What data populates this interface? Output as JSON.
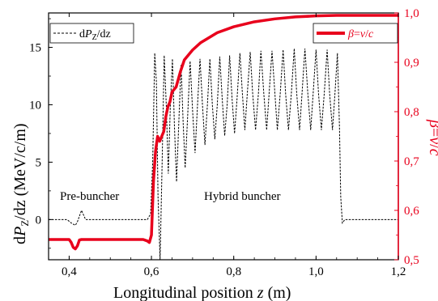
{
  "chart_data": {
    "type": "line",
    "xlabel": "Longitudinal position z (m)",
    "ylabel_left": "dPZ/dz (MeV/c/m)",
    "ylabel_right": "β=v/c",
    "xlim": [
      0.35,
      1.2
    ],
    "ylim_left": [
      -3.5,
      18.0
    ],
    "ylim_right": [
      0.5,
      1.0
    ],
    "x_ticks": [
      "0,4",
      "0,6",
      "0,8",
      "1,0",
      "1,2"
    ],
    "x_tick_values": [
      0.4,
      0.6,
      0.8,
      1.0,
      1.2
    ],
    "y_left_ticks": [
      "0",
      "5",
      "10",
      "15"
    ],
    "y_left_tick_values": [
      0,
      5,
      10,
      15
    ],
    "y_right_ticks": [
      "0,5",
      "0,6",
      "0,7",
      "0,8",
      "0,9",
      "1,0"
    ],
    "y_right_tick_values": [
      0.5,
      0.6,
      0.7,
      0.8,
      0.9,
      1.0
    ],
    "annotations": [
      "Pre-buncher",
      "Hybrid buncher"
    ],
    "legend_left": "dPZ/dz",
    "legend_right": "β=v/c",
    "series": [
      {
        "name": "dPZ/dz",
        "axis": "left",
        "color": "#000000",
        "style": "dashed",
        "points": [
          [
            0.35,
            0
          ],
          [
            0.395,
            0
          ],
          [
            0.405,
            -0.3
          ],
          [
            0.415,
            -0.5
          ],
          [
            0.42,
            -0.2
          ],
          [
            0.425,
            0.3
          ],
          [
            0.43,
            0.8
          ],
          [
            0.435,
            0.4
          ],
          [
            0.44,
            0
          ],
          [
            0.59,
            0
          ],
          [
            0.598,
            0.5
          ],
          [
            0.603,
            5
          ],
          [
            0.608,
            14.5
          ],
          [
            0.612,
            12
          ],
          [
            0.616,
            2
          ],
          [
            0.621,
            -3.5
          ],
          [
            0.626,
            5
          ],
          [
            0.631,
            14.3
          ],
          [
            0.636,
            10
          ],
          [
            0.641,
            4
          ],
          [
            0.646,
            10
          ],
          [
            0.651,
            14
          ],
          [
            0.656,
            8
          ],
          [
            0.661,
            3.3
          ],
          [
            0.666,
            8
          ],
          [
            0.672,
            13.5
          ],
          [
            0.677,
            8.5
          ],
          [
            0.682,
            4.5
          ],
          [
            0.688,
            9
          ],
          [
            0.694,
            13.8
          ],
          [
            0.7,
            9.5
          ],
          [
            0.706,
            5.8
          ],
          [
            0.712,
            10
          ],
          [
            0.718,
            14
          ],
          [
            0.724,
            10
          ],
          [
            0.73,
            6.5
          ],
          [
            0.736,
            10
          ],
          [
            0.742,
            14.0
          ],
          [
            0.748,
            10
          ],
          [
            0.754,
            7
          ],
          [
            0.76,
            10
          ],
          [
            0.766,
            14.2
          ],
          [
            0.772,
            10.5
          ],
          [
            0.778,
            7.3
          ],
          [
            0.784,
            10
          ],
          [
            0.79,
            14.3
          ],
          [
            0.796,
            10.5
          ],
          [
            0.802,
            7.5
          ],
          [
            0.808,
            10.5
          ],
          [
            0.815,
            14.5
          ],
          [
            0.821,
            11
          ],
          [
            0.827,
            7.8
          ],
          [
            0.833,
            11
          ],
          [
            0.84,
            14.6
          ],
          [
            0.846,
            11
          ],
          [
            0.853,
            7.8
          ],
          [
            0.86,
            11
          ],
          [
            0.866,
            14.7
          ],
          [
            0.873,
            11
          ],
          [
            0.88,
            7.8
          ],
          [
            0.886,
            11
          ],
          [
            0.893,
            14.7
          ],
          [
            0.9,
            11
          ],
          [
            0.906,
            7.8
          ],
          [
            0.913,
            11
          ],
          [
            0.92,
            14.8
          ],
          [
            0.926,
            11
          ],
          [
            0.933,
            7.8
          ],
          [
            0.94,
            11
          ],
          [
            0.947,
            14.9
          ],
          [
            0.953,
            11
          ],
          [
            0.96,
            7.8
          ],
          [
            0.966,
            11
          ],
          [
            0.973,
            14.9
          ],
          [
            0.98,
            11
          ],
          [
            0.987,
            7.8
          ],
          [
            0.993,
            11
          ],
          [
            1.0,
            14.8
          ],
          [
            1.006,
            11
          ],
          [
            1.013,
            7.8
          ],
          [
            1.02,
            11
          ],
          [
            1.027,
            14.8
          ],
          [
            1.033,
            11
          ],
          [
            1.04,
            7.8
          ],
          [
            1.046,
            11
          ],
          [
            1.052,
            14.5
          ],
          [
            1.057,
            8
          ],
          [
            1.06,
            2
          ],
          [
            1.064,
            -0.3
          ],
          [
            1.07,
            0
          ],
          [
            1.2,
            0
          ]
        ]
      },
      {
        "name": "β=v/c",
        "axis": "right",
        "color": "#e8001c",
        "style": "solid",
        "points": [
          [
            0.35,
            0.541
          ],
          [
            0.4,
            0.541
          ],
          [
            0.405,
            0.535
          ],
          [
            0.41,
            0.525
          ],
          [
            0.415,
            0.522
          ],
          [
            0.42,
            0.528
          ],
          [
            0.425,
            0.54
          ],
          [
            0.43,
            0.541
          ],
          [
            0.58,
            0.541
          ],
          [
            0.59,
            0.538
          ],
          [
            0.595,
            0.535
          ],
          [
            0.6,
            0.55
          ],
          [
            0.605,
            0.66
          ],
          [
            0.61,
            0.72
          ],
          [
            0.615,
            0.75
          ],
          [
            0.62,
            0.74
          ],
          [
            0.625,
            0.75
          ],
          [
            0.63,
            0.76
          ],
          [
            0.635,
            0.79
          ],
          [
            0.64,
            0.81
          ],
          [
            0.645,
            0.82
          ],
          [
            0.65,
            0.84
          ],
          [
            0.66,
            0.85
          ],
          [
            0.67,
            0.88
          ],
          [
            0.68,
            0.905
          ],
          [
            0.7,
            0.925
          ],
          [
            0.72,
            0.94
          ],
          [
            0.74,
            0.95
          ],
          [
            0.76,
            0.96
          ],
          [
            0.8,
            0.972
          ],
          [
            0.85,
            0.982
          ],
          [
            0.9,
            0.988
          ],
          [
            0.95,
            0.992
          ],
          [
            1.0,
            0.994
          ],
          [
            1.05,
            0.995
          ],
          [
            1.1,
            0.995
          ],
          [
            1.2,
            0.995
          ]
        ]
      }
    ]
  }
}
